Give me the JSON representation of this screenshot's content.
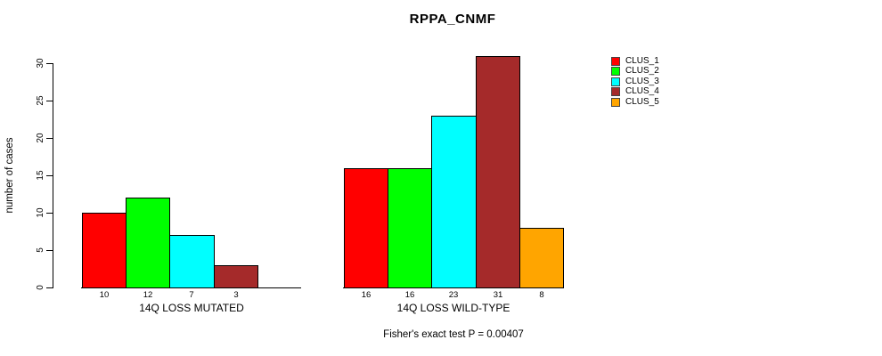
{
  "chart_data": {
    "type": "bar",
    "title": "RPPA_CNMF",
    "ylabel": "number of cases",
    "xlabel": "",
    "ylim": [
      0,
      30
    ],
    "yticks": [
      0,
      5,
      10,
      15,
      20,
      25,
      30
    ],
    "grid": false,
    "legend_position": "right",
    "categories": [
      "14Q LOSS MUTATED",
      "14Q LOSS WILD-TYPE"
    ],
    "series": [
      {
        "name": "CLUS_1",
        "color": "#FF0000",
        "values": [
          10,
          16
        ]
      },
      {
        "name": "CLUS_2",
        "color": "#00FF00",
        "values": [
          12,
          16
        ]
      },
      {
        "name": "CLUS_3",
        "color": "#00FFFF",
        "values": [
          7,
          23
        ]
      },
      {
        "name": "CLUS_4",
        "color": "#A52A2A",
        "values": [
          3,
          31
        ]
      },
      {
        "name": "CLUS_5",
        "color": "#FFA500",
        "values": [
          0,
          8
        ]
      }
    ],
    "bar_value_labels": [
      [
        "10",
        "12",
        "7",
        "3",
        ""
      ],
      [
        "16",
        "16",
        "23",
        "31",
        "8"
      ]
    ],
    "annotation": "Fisher's exact test P = 0.00407"
  }
}
